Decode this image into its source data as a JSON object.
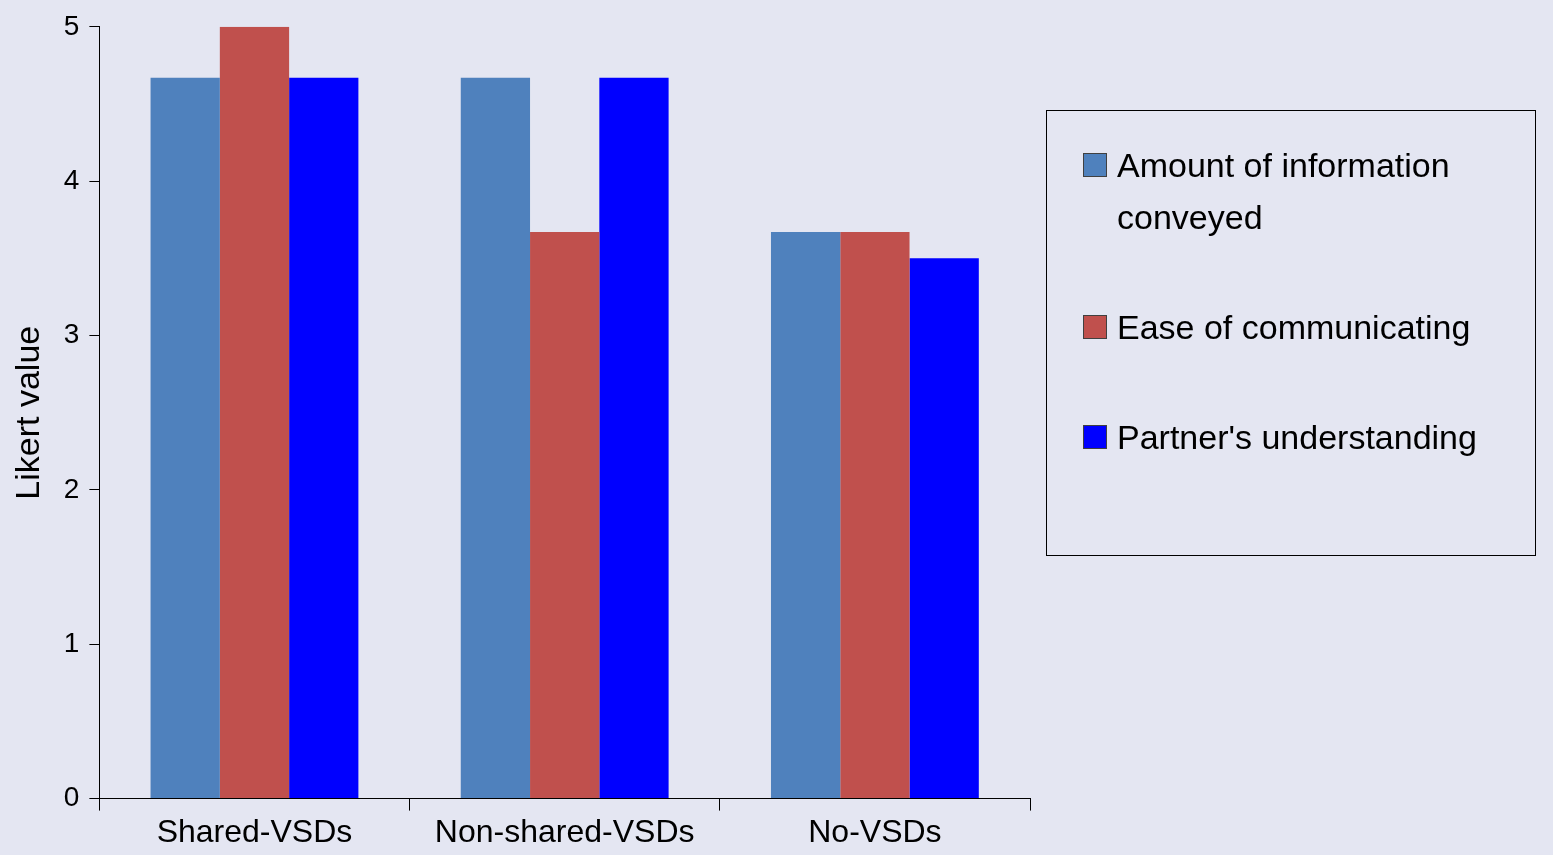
{
  "chart_data": {
    "type": "bar",
    "ylabel": "Likert value",
    "categories": [
      "Shared-VSDs",
      "Non-shared-VSDs",
      "No-VSDs"
    ],
    "series": [
      {
        "name": "Amount of information conveyed",
        "color": "#4f81bd",
        "values": [
          4.67,
          4.67,
          3.67
        ]
      },
      {
        "name": "Ease of communicating",
        "color": "#c0504d",
        "values": [
          5,
          3.67,
          3.67
        ]
      },
      {
        "name": "Partner's understanding",
        "color": "#0000ff",
        "values": [
          4.67,
          4.67,
          3.5
        ]
      }
    ],
    "ylim": [
      0,
      5
    ],
    "yticks": [
      0,
      1,
      2,
      3,
      4,
      5
    ],
    "grid": false,
    "legend": "right"
  }
}
